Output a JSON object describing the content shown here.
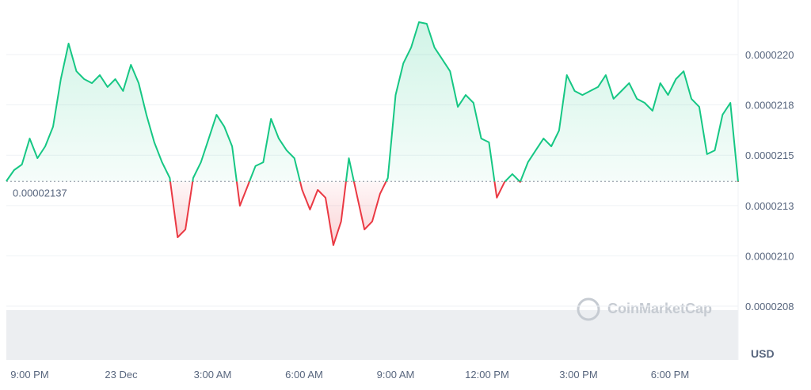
{
  "chart_data": {
    "type": "line",
    "currency": "USD",
    "watermark": "CoinMarketCap",
    "baseline": 2.137e-05,
    "up_color": "#16c784",
    "down_color": "#ea3943",
    "values": [
      2.1371e-05,
      2.1426e-05,
      2.1454e-05,
      2.1583e-05,
      2.1485e-05,
      2.1544e-05,
      2.1642e-05,
      2.1878e-05,
      2.2055e-05,
      2.1917e-05,
      2.1878e-05,
      2.1858e-05,
      2.1898e-05,
      2.1839e-05,
      2.1878e-05,
      2.1819e-05,
      2.1949e-05,
      2.1858e-05,
      2.1701e-05,
      2.1564e-05,
      2.1465e-05,
      2.1387e-05,
      2.1092e-05,
      2.1131e-05,
      2.1387e-05,
      2.1465e-05,
      2.1583e-05,
      2.1701e-05,
      2.1642e-05,
      2.1544e-05,
      2.1249e-05,
      2.1347e-05,
      2.1446e-05,
      2.1465e-05,
      2.1681e-05,
      2.1583e-05,
      2.1524e-05,
      2.1485e-05,
      2.1328e-05,
      2.123e-05,
      2.1328e-05,
      2.1289e-05,
      2.1053e-05,
      2.1171e-05,
      2.1485e-05,
      2.1308e-05,
      2.1131e-05,
      2.1171e-05,
      2.1308e-05,
      2.1387e-05,
      2.1799e-05,
      2.1957e-05,
      2.2035e-05,
      2.2161e-05,
      2.2153e-05,
      2.2035e-05,
      2.1976e-05,
      2.1917e-05,
      2.174e-05,
      2.1799e-05,
      2.176e-05,
      2.1583e-05,
      2.1564e-05,
      2.1289e-05,
      2.1367e-05,
      2.1406e-05,
      2.1367e-05,
      2.1465e-05,
      2.1524e-05,
      2.1583e-05,
      2.1544e-05,
      2.1623e-05,
      2.1898e-05,
      2.1819e-05,
      2.1799e-05,
      2.1819e-05,
      2.1839e-05,
      2.1898e-05,
      2.178e-05,
      2.1819e-05,
      2.1858e-05,
      2.178e-05,
      2.176e-05,
      2.1721e-05,
      2.1858e-05,
      2.1799e-05,
      2.1878e-05,
      2.1917e-05,
      2.178e-05,
      2.174e-05,
      2.1505e-05,
      2.1524e-05,
      2.1701e-05,
      2.176e-05,
      2.1367e-05
    ],
    "xlim": [
      0,
      94
    ],
    "xticks": [
      {
        "value": 3,
        "label": "9:00 PM"
      },
      {
        "value": 14.75,
        "label": "23 Dec"
      },
      {
        "value": 26.5,
        "label": "3:00 AM"
      },
      {
        "value": 38.25,
        "label": "6:00 AM"
      },
      {
        "value": 50,
        "label": "9:00 AM"
      },
      {
        "value": 61.75,
        "label": "12:00 PM"
      },
      {
        "value": 73.5,
        "label": "3:00 PM"
      },
      {
        "value": 85.25,
        "label": "6:00 PM"
      }
    ],
    "ylim": [
      2.0483e-05,
      2.2271e-05
    ],
    "yticks": [
      {
        "value": 2.2e-05,
        "label": "0.0000220"
      },
      {
        "value": 2.175e-05,
        "label": "0.0000218"
      },
      {
        "value": 2.15e-05,
        "label": "0.0000215"
      },
      {
        "value": 2.125e-05,
        "label": "0.0000213"
      },
      {
        "value": 2.1e-05,
        "label": "0.0000210"
      },
      {
        "value": 2.075e-05,
        "label": "0.0000208"
      }
    ],
    "grid": true
  }
}
